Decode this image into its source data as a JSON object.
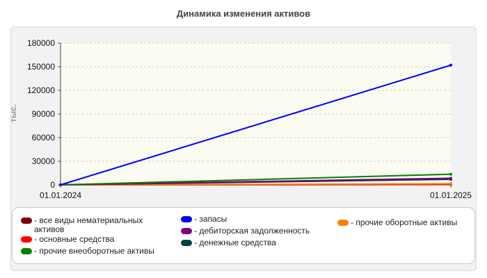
{
  "chart_data": {
    "type": "line",
    "title": "Динамика изменения активов",
    "ylabel": "тыс.",
    "xlabel": "",
    "x": [
      "01.01.2024",
      "01.01.2025"
    ],
    "ylim": [
      0,
      180000
    ],
    "yticks": [
      "0",
      "30000",
      "60000",
      "90000",
      "120000",
      "150000",
      "180000"
    ],
    "grid": true,
    "legend_position": "bottom",
    "series": [
      {
        "name": "все виды нематериальных активов",
        "values": [
          0,
          500
        ],
        "color": "#7f0000"
      },
      {
        "name": "основные средства",
        "values": [
          0,
          800
        ],
        "color": "#ff0000"
      },
      {
        "name": "прочие внеоборотные активы",
        "values": [
          0,
          13500
        ],
        "color": "#008000"
      },
      {
        "name": "запасы",
        "values": [
          0,
          152000
        ],
        "color": "#0000ff"
      },
      {
        "name": "дебиторская задолженность",
        "values": [
          0,
          8500
        ],
        "color": "#800080"
      },
      {
        "name": "денежные средства",
        "values": [
          0,
          7000
        ],
        "color": "#004040"
      },
      {
        "name": "прочие оборотные активы",
        "values": [
          0,
          1500
        ],
        "color": "#ff8000"
      }
    ]
  }
}
